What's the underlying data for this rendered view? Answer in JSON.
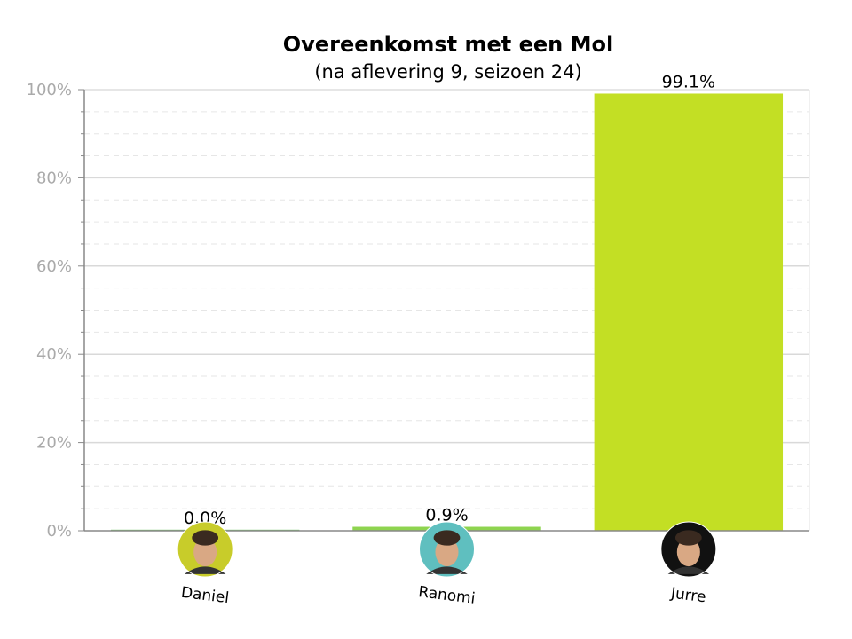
{
  "chart_data": {
    "type": "bar",
    "title": "Overeenkomst met een Mol",
    "subtitle": "(na aflevering 9, seizoen 24)",
    "categories": [
      "Daniel",
      "Ranomi",
      "Jurre"
    ],
    "values": [
      0.0,
      0.9,
      99.1
    ],
    "value_labels": [
      "0.0%",
      "0.9%",
      "99.1%"
    ],
    "bar_colors": [
      "#7cc96c",
      "#8ed44f",
      "#c3df24"
    ],
    "avatar_icons": [
      "daniel-avatar-icon",
      "ranomi-avatar-icon",
      "jurre-avatar-icon"
    ],
    "avatar_colors": [
      "#c8cc2a",
      "#5fbfbf",
      "#111111"
    ],
    "ylim": [
      0,
      100
    ],
    "yticks": [
      0,
      20,
      40,
      60,
      80,
      100
    ],
    "ytick_labels": [
      "0%",
      "20%",
      "40%",
      "60%",
      "80%",
      "100%"
    ],
    "grid": true,
    "legend": "none"
  }
}
